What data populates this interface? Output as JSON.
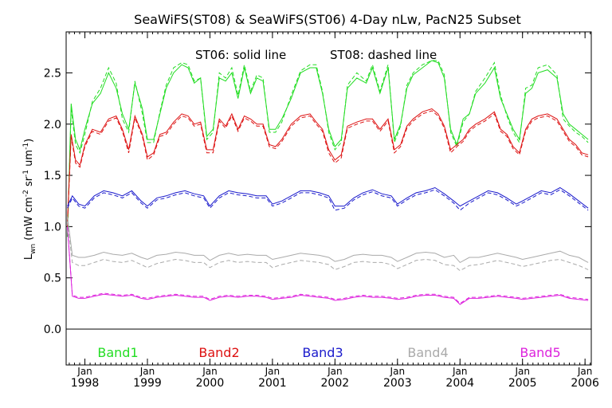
{
  "chart_data": {
    "type": "line",
    "title": "SeaWiFS(ST08) & SeaWiFS(ST06) 4-Day nLw, PacN25 Subset",
    "annotation_solid": "ST06: solid line",
    "annotation_dashed": "ST08: dashed line",
    "ylabel_main": "L",
    "ylabel_sub": "wn",
    "ylabel_units_open": " (mW cm",
    "ylabel_exp1": "-2",
    "ylabel_mid1": " sr",
    "ylabel_exp2": "-1",
    "ylabel_mid2": " um",
    "ylabel_exp3": "-1",
    "ylabel_close": ")",
    "xlim": [
      1997.7,
      2006.1
    ],
    "ylim": [
      -0.35,
      2.9
    ],
    "x_ticks": [
      {
        "x": 1998.0,
        "month": "Jan",
        "year": "1998"
      },
      {
        "x": 1999.0,
        "month": "Jan",
        "year": "1999"
      },
      {
        "x": 2000.0,
        "month": "Jan",
        "year": "2000"
      },
      {
        "x": 2001.0,
        "month": "Jan",
        "year": "2001"
      },
      {
        "x": 2002.0,
        "month": "Jan",
        "year": "2002"
      },
      {
        "x": 2003.0,
        "month": "Jan",
        "year": "2003"
      },
      {
        "x": 2004.0,
        "month": "Jan",
        "year": "2004"
      },
      {
        "x": 2005.0,
        "month": "Jan",
        "year": "2005"
      },
      {
        "x": 2006.0,
        "month": "Jan",
        "year": "2006"
      }
    ],
    "y_ticks": [
      0.0,
      0.5,
      1.0,
      1.5,
      2.0,
      2.5
    ],
    "y_tick_labels": [
      "0.0",
      "0.5",
      "1.0",
      "1.5",
      "2.0",
      "2.5"
    ],
    "legend_position": "bottom",
    "grid": false,
    "series": [
      {
        "name": "Band1",
        "color": "#22dd22",
        "x": [
          1997.72,
          1997.78,
          1997.85,
          1997.92,
          1998.0,
          1998.12,
          1998.25,
          1998.38,
          1998.5,
          1998.6,
          1998.7,
          1998.8,
          1998.92,
          1999.0,
          1999.1,
          1999.2,
          1999.3,
          1999.42,
          1999.55,
          1999.65,
          1999.75,
          1999.85,
          1999.95,
          2000.05,
          2000.15,
          2000.25,
          2000.35,
          2000.45,
          2000.55,
          2000.65,
          2000.75,
          2000.85,
          2000.95,
          2001.05,
          2001.15,
          2001.3,
          2001.45,
          2001.6,
          2001.7,
          2001.8,
          2001.9,
          2002.0,
          2002.1,
          2002.2,
          2002.35,
          2002.5,
          2002.6,
          2002.72,
          2002.85,
          2002.95,
          2003.05,
          2003.15,
          2003.25,
          2003.4,
          2003.55,
          2003.65,
          2003.75,
          2003.85,
          2003.95,
          2004.05,
          2004.15,
          2004.25,
          2004.4,
          2004.55,
          2004.65,
          2004.75,
          2004.85,
          2004.95,
          2005.05,
          2005.15,
          2005.25,
          2005.4,
          2005.55,
          2005.65,
          2005.75,
          2005.85,
          2005.95,
          2006.05
        ],
        "st06": [
          0.9,
          2.2,
          1.85,
          1.75,
          1.95,
          2.2,
          2.3,
          2.5,
          2.35,
          2.1,
          1.95,
          2.4,
          2.15,
          1.85,
          1.85,
          2.1,
          2.35,
          2.5,
          2.58,
          2.55,
          2.4,
          2.45,
          1.88,
          1.95,
          2.45,
          2.42,
          2.5,
          2.25,
          2.55,
          2.3,
          2.45,
          2.42,
          1.95,
          1.95,
          2.05,
          2.25,
          2.5,
          2.55,
          2.55,
          2.3,
          1.95,
          1.78,
          1.85,
          2.35,
          2.45,
          2.4,
          2.55,
          2.3,
          2.55,
          1.85,
          2.0,
          2.35,
          2.48,
          2.55,
          2.62,
          2.6,
          2.45,
          1.95,
          1.8,
          2.05,
          2.1,
          2.3,
          2.4,
          2.55,
          2.25,
          2.1,
          1.95,
          1.85,
          2.3,
          2.35,
          2.5,
          2.53,
          2.45,
          2.1,
          2.0,
          1.95,
          1.9,
          1.85
        ],
        "st08": [
          0.9,
          2.15,
          1.8,
          1.72,
          1.9,
          2.22,
          2.35,
          2.55,
          2.4,
          2.05,
          1.92,
          2.42,
          2.1,
          1.82,
          1.82,
          2.12,
          2.38,
          2.55,
          2.6,
          2.58,
          2.42,
          2.45,
          1.85,
          1.92,
          2.5,
          2.45,
          2.55,
          2.28,
          2.58,
          2.32,
          2.48,
          2.45,
          1.92,
          1.92,
          2.02,
          2.28,
          2.52,
          2.58,
          2.58,
          2.32,
          1.92,
          1.75,
          1.82,
          2.38,
          2.5,
          2.42,
          2.58,
          2.32,
          2.58,
          1.82,
          1.98,
          2.38,
          2.5,
          2.58,
          2.62,
          2.62,
          2.48,
          1.92,
          1.78,
          2.02,
          2.1,
          2.32,
          2.45,
          2.6,
          2.28,
          2.08,
          1.92,
          1.82,
          2.35,
          2.38,
          2.55,
          2.58,
          2.48,
          2.05,
          1.98,
          1.92,
          1.88,
          1.82
        ]
      },
      {
        "name": "Band2",
        "color": "#dd1111",
        "x": [
          1997.72,
          1997.78,
          1997.85,
          1997.92,
          1998.0,
          1998.12,
          1998.25,
          1998.38,
          1998.5,
          1998.6,
          1998.7,
          1998.8,
          1998.92,
          1999.0,
          1999.1,
          1999.2,
          1999.3,
          1999.42,
          1999.55,
          1999.65,
          1999.75,
          1999.85,
          1999.95,
          2000.05,
          2000.15,
          2000.25,
          2000.35,
          2000.45,
          2000.55,
          2000.65,
          2000.75,
          2000.85,
          2000.95,
          2001.05,
          2001.15,
          2001.3,
          2001.45,
          2001.6,
          2001.7,
          2001.8,
          2001.9,
          2002.0,
          2002.1,
          2002.2,
          2002.35,
          2002.5,
          2002.6,
          2002.72,
          2002.85,
          2002.95,
          2003.05,
          2003.15,
          2003.25,
          2003.4,
          2003.55,
          2003.65,
          2003.75,
          2003.85,
          2003.95,
          2004.05,
          2004.15,
          2004.25,
          2004.4,
          2004.55,
          2004.65,
          2004.75,
          2004.85,
          2004.95,
          2005.05,
          2005.15,
          2005.25,
          2005.4,
          2005.55,
          2005.65,
          2005.75,
          2005.85,
          2005.95,
          2006.05
        ],
        "st06": [
          1.05,
          1.9,
          1.65,
          1.6,
          1.8,
          1.95,
          1.92,
          2.05,
          2.08,
          1.95,
          1.75,
          2.08,
          1.9,
          1.68,
          1.72,
          1.9,
          1.92,
          2.02,
          2.1,
          2.08,
          2.0,
          2.02,
          1.75,
          1.75,
          2.05,
          1.98,
          2.1,
          1.95,
          2.08,
          2.05,
          2.0,
          2.0,
          1.8,
          1.78,
          1.85,
          2.0,
          2.08,
          2.1,
          2.02,
          1.95,
          1.75,
          1.65,
          1.7,
          1.98,
          2.02,
          2.05,
          2.05,
          1.95,
          2.05,
          1.75,
          1.8,
          1.98,
          2.05,
          2.12,
          2.15,
          2.1,
          1.98,
          1.75,
          1.8,
          1.85,
          1.95,
          2.0,
          2.05,
          2.12,
          1.95,
          1.9,
          1.78,
          1.72,
          1.95,
          2.05,
          2.08,
          2.1,
          2.05,
          1.95,
          1.85,
          1.8,
          1.72,
          1.7
        ],
        "st08": [
          1.0,
          1.88,
          1.62,
          1.58,
          1.78,
          1.93,
          1.9,
          2.03,
          2.06,
          1.93,
          1.72,
          2.06,
          1.88,
          1.65,
          1.7,
          1.88,
          1.9,
          2.0,
          2.08,
          2.06,
          1.98,
          2.0,
          1.72,
          1.72,
          2.03,
          1.96,
          2.08,
          1.93,
          2.06,
          2.03,
          1.98,
          1.98,
          1.78,
          1.76,
          1.83,
          1.98,
          2.06,
          2.08,
          2.0,
          1.93,
          1.72,
          1.62,
          1.67,
          1.96,
          2.0,
          2.03,
          2.03,
          1.93,
          2.03,
          1.72,
          1.78,
          1.96,
          2.03,
          2.1,
          2.13,
          2.08,
          1.96,
          1.72,
          1.78,
          1.83,
          1.93,
          1.98,
          2.03,
          2.1,
          1.93,
          1.88,
          1.76,
          1.7,
          1.93,
          2.03,
          2.06,
          2.08,
          2.03,
          1.93,
          1.83,
          1.78,
          1.7,
          1.68
        ]
      },
      {
        "name": "Band3",
        "color": "#1a1acc",
        "x": [
          1997.72,
          1997.8,
          1997.9,
          1998.0,
          1998.15,
          1998.3,
          1998.45,
          1998.6,
          1998.75,
          1998.9,
          1999.0,
          1999.15,
          1999.3,
          1999.45,
          1999.6,
          1999.75,
          1999.9,
          2000.0,
          2000.15,
          2000.3,
          2000.45,
          2000.6,
          2000.75,
          2000.9,
          2001.0,
          2001.15,
          2001.3,
          2001.45,
          2001.6,
          2001.75,
          2001.9,
          2002.0,
          2002.15,
          2002.3,
          2002.45,
          2002.6,
          2002.75,
          2002.9,
          2003.0,
          2003.15,
          2003.3,
          2003.45,
          2003.6,
          2003.75,
          2003.9,
          2004.0,
          2004.15,
          2004.3,
          2004.45,
          2004.6,
          2004.75,
          2004.9,
          2005.0,
          2005.15,
          2005.3,
          2005.45,
          2005.6,
          2005.75,
          2005.9,
          2006.05
        ],
        "st06": [
          1.2,
          1.3,
          1.22,
          1.2,
          1.3,
          1.35,
          1.33,
          1.3,
          1.35,
          1.25,
          1.2,
          1.28,
          1.3,
          1.33,
          1.35,
          1.32,
          1.3,
          1.2,
          1.3,
          1.35,
          1.33,
          1.32,
          1.3,
          1.3,
          1.22,
          1.25,
          1.3,
          1.35,
          1.35,
          1.33,
          1.3,
          1.2,
          1.2,
          1.28,
          1.33,
          1.36,
          1.32,
          1.3,
          1.22,
          1.28,
          1.33,
          1.35,
          1.38,
          1.32,
          1.25,
          1.2,
          1.25,
          1.3,
          1.35,
          1.33,
          1.28,
          1.22,
          1.25,
          1.3,
          1.35,
          1.33,
          1.38,
          1.32,
          1.25,
          1.18
        ],
        "st08": [
          1.18,
          1.28,
          1.2,
          1.18,
          1.28,
          1.33,
          1.31,
          1.28,
          1.33,
          1.23,
          1.18,
          1.26,
          1.28,
          1.31,
          1.33,
          1.3,
          1.28,
          1.18,
          1.28,
          1.33,
          1.31,
          1.3,
          1.28,
          1.28,
          1.2,
          1.23,
          1.28,
          1.33,
          1.33,
          1.31,
          1.28,
          1.16,
          1.18,
          1.26,
          1.31,
          1.34,
          1.3,
          1.28,
          1.2,
          1.26,
          1.31,
          1.33,
          1.36,
          1.3,
          1.23,
          1.16,
          1.23,
          1.28,
          1.33,
          1.31,
          1.26,
          1.2,
          1.23,
          1.28,
          1.33,
          1.31,
          1.36,
          1.3,
          1.23,
          1.16
        ]
      },
      {
        "name": "Band4",
        "color": "#aaaaaa",
        "x": [
          1997.72,
          1997.8,
          1997.9,
          1998.0,
          1998.15,
          1998.3,
          1998.45,
          1998.6,
          1998.75,
          1998.9,
          1999.0,
          1999.15,
          1999.3,
          1999.45,
          1999.6,
          1999.75,
          1999.9,
          2000.0,
          2000.15,
          2000.3,
          2000.45,
          2000.6,
          2000.75,
          2000.9,
          2001.0,
          2001.15,
          2001.3,
          2001.45,
          2001.6,
          2001.75,
          2001.9,
          2002.0,
          2002.15,
          2002.3,
          2002.45,
          2002.6,
          2002.75,
          2002.9,
          2003.0,
          2003.15,
          2003.3,
          2003.45,
          2003.6,
          2003.75,
          2003.9,
          2004.0,
          2004.15,
          2004.3,
          2004.45,
          2004.6,
          2004.75,
          2004.9,
          2005.0,
          2005.15,
          2005.3,
          2005.45,
          2005.6,
          2005.75,
          2005.9,
          2006.05
        ],
        "st06": [
          1.1,
          0.72,
          0.7,
          0.7,
          0.72,
          0.75,
          0.73,
          0.72,
          0.74,
          0.7,
          0.68,
          0.72,
          0.73,
          0.75,
          0.74,
          0.72,
          0.72,
          0.67,
          0.72,
          0.74,
          0.72,
          0.73,
          0.72,
          0.72,
          0.68,
          0.7,
          0.72,
          0.74,
          0.73,
          0.72,
          0.7,
          0.66,
          0.68,
          0.72,
          0.73,
          0.72,
          0.72,
          0.7,
          0.66,
          0.7,
          0.74,
          0.75,
          0.74,
          0.7,
          0.72,
          0.65,
          0.7,
          0.7,
          0.72,
          0.74,
          0.72,
          0.7,
          0.68,
          0.7,
          0.72,
          0.74,
          0.76,
          0.72,
          0.7,
          0.65
        ],
        "st08": [
          1.05,
          0.65,
          0.62,
          0.62,
          0.65,
          0.68,
          0.66,
          0.65,
          0.67,
          0.63,
          0.6,
          0.64,
          0.66,
          0.68,
          0.67,
          0.65,
          0.65,
          0.6,
          0.65,
          0.67,
          0.65,
          0.66,
          0.65,
          0.65,
          0.6,
          0.63,
          0.65,
          0.67,
          0.66,
          0.65,
          0.63,
          0.58,
          0.61,
          0.65,
          0.66,
          0.65,
          0.65,
          0.63,
          0.59,
          0.63,
          0.67,
          0.68,
          0.67,
          0.63,
          0.62,
          0.57,
          0.62,
          0.63,
          0.65,
          0.67,
          0.65,
          0.63,
          0.61,
          0.63,
          0.65,
          0.67,
          0.68,
          0.65,
          0.62,
          0.58
        ]
      },
      {
        "name": "Band5",
        "color": "#dd22dd",
        "x": [
          1997.72,
          1997.8,
          1997.9,
          1998.0,
          1998.15,
          1998.3,
          1998.45,
          1998.6,
          1998.75,
          1998.9,
          1999.0,
          1999.15,
          1999.3,
          1999.45,
          1999.6,
          1999.75,
          1999.9,
          2000.0,
          2000.15,
          2000.3,
          2000.45,
          2000.6,
          2000.75,
          2000.9,
          2001.0,
          2001.15,
          2001.3,
          2001.45,
          2001.6,
          2001.75,
          2001.9,
          2002.0,
          2002.15,
          2002.3,
          2002.45,
          2002.6,
          2002.75,
          2002.9,
          2003.0,
          2003.15,
          2003.3,
          2003.45,
          2003.6,
          2003.75,
          2003.9,
          2004.0,
          2004.15,
          2004.3,
          2004.45,
          2004.6,
          2004.75,
          2004.9,
          2005.0,
          2005.15,
          2005.3,
          2005.45,
          2005.6,
          2005.75,
          2005.9,
          2006.05
        ],
        "st06": [
          1.0,
          0.32,
          0.3,
          0.3,
          0.32,
          0.34,
          0.33,
          0.32,
          0.33,
          0.3,
          0.29,
          0.31,
          0.32,
          0.33,
          0.32,
          0.31,
          0.31,
          0.28,
          0.31,
          0.32,
          0.31,
          0.32,
          0.32,
          0.31,
          0.29,
          0.3,
          0.31,
          0.33,
          0.32,
          0.31,
          0.3,
          0.28,
          0.29,
          0.31,
          0.32,
          0.31,
          0.31,
          0.3,
          0.29,
          0.3,
          0.32,
          0.33,
          0.33,
          0.31,
          0.3,
          0.24,
          0.3,
          0.3,
          0.31,
          0.32,
          0.31,
          0.3,
          0.29,
          0.3,
          0.31,
          0.32,
          0.33,
          0.3,
          0.29,
          0.28
        ],
        "st08": [
          1.0,
          0.33,
          0.31,
          0.31,
          0.33,
          0.35,
          0.34,
          0.33,
          0.34,
          0.31,
          0.3,
          0.32,
          0.33,
          0.34,
          0.33,
          0.32,
          0.32,
          0.29,
          0.32,
          0.33,
          0.32,
          0.33,
          0.33,
          0.32,
          0.3,
          0.31,
          0.32,
          0.34,
          0.33,
          0.32,
          0.31,
          0.29,
          0.3,
          0.32,
          0.33,
          0.32,
          0.32,
          0.31,
          0.3,
          0.31,
          0.33,
          0.34,
          0.34,
          0.32,
          0.31,
          0.25,
          0.31,
          0.31,
          0.32,
          0.33,
          0.32,
          0.31,
          0.3,
          0.31,
          0.32,
          0.33,
          0.34,
          0.31,
          0.3,
          0.29
        ]
      }
    ]
  }
}
